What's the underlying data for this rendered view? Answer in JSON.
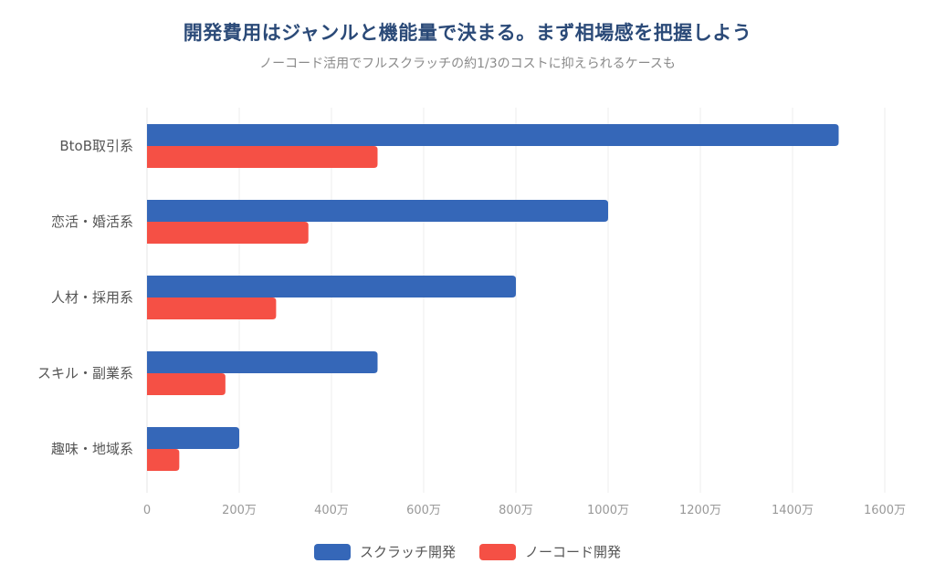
{
  "chart_data": {
    "type": "bar",
    "orientation": "horizontal",
    "title": "開発費用はジャンルと機能量で決まる。まず相場感を把握しよう",
    "subtitle": "ノーコード活用でフルスクラッチの約1/3のコストに抑えられるケースも",
    "categories": [
      "BtoB取引系",
      "恋活・婚活系",
      "人材・採用系",
      "スキル・副業系",
      "趣味・地域系"
    ],
    "series": [
      {
        "name": "スクラッチ開発",
        "color": "#3567b8",
        "values": [
          1500,
          1000,
          800,
          500,
          200
        ]
      },
      {
        "name": "ノーコード開発",
        "color": "#f55045",
        "values": [
          500,
          350,
          280,
          170,
          70
        ]
      }
    ],
    "xlabel": "",
    "ylabel": "",
    "unit": "万",
    "xlim": [
      0,
      1600
    ],
    "xticks": [
      0,
      200,
      400,
      600,
      800,
      1000,
      1200,
      1400,
      1600
    ],
    "xtick_labels": [
      "0",
      "200万",
      "400万",
      "600万",
      "800万",
      "1000万",
      "1200万",
      "1400万",
      "1600万"
    ],
    "grid": true,
    "legend_position": "bottom"
  }
}
